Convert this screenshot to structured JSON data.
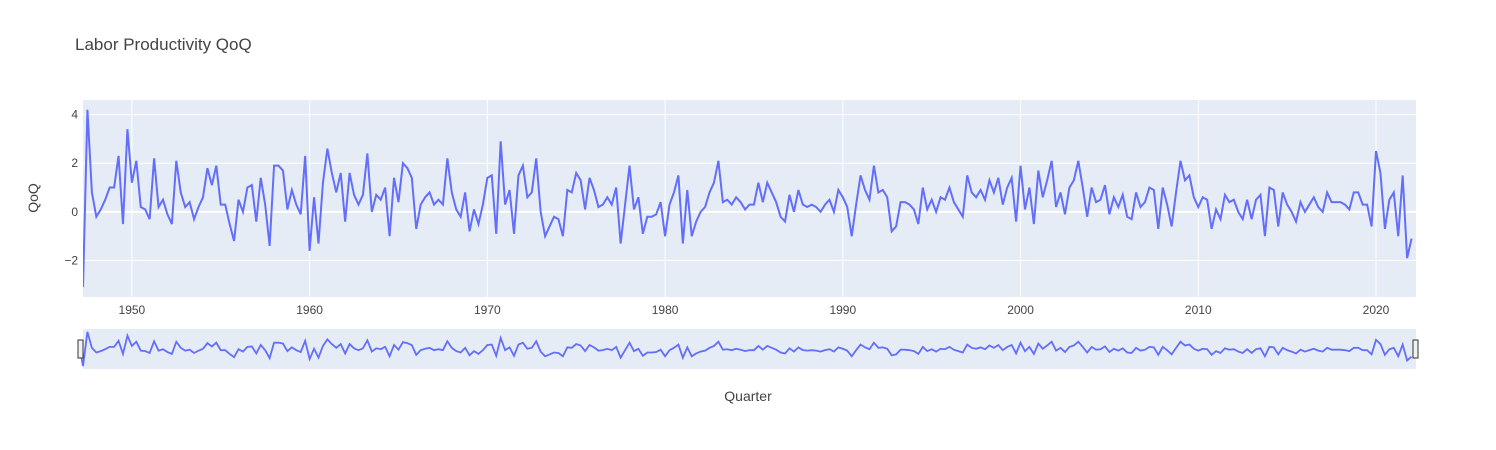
{
  "chart_data": {
    "type": "line",
    "title": "Labor Productivity QoQ",
    "xlabel": "Quarter",
    "ylabel": "QoQ",
    "x_start": "1947-Q1",
    "x_range": [
      1947.25,
      2022.25
    ],
    "ylim": [
      -3.5,
      4.6
    ],
    "xticks": [
      "1950",
      "1960",
      "1970",
      "1980",
      "1990",
      "2000",
      "2010",
      "2020"
    ],
    "yticks": [
      "−2",
      "0",
      "2",
      "4"
    ],
    "grid": true,
    "rangeslider": true,
    "colors": {
      "line": "#636efa",
      "plot_bg": "#e5ecf6",
      "grid": "#ffffff",
      "text": "#444444"
    },
    "series": [
      {
        "values": [
          2.3,
          -3.1,
          4.2,
          0.8,
          -0.2,
          0.1,
          0.5,
          1.0,
          1.0,
          2.3,
          -0.5,
          3.4,
          1.2,
          2.1,
          0.2,
          0.1,
          -0.3,
          2.2,
          0.2,
          0.5,
          -0.1,
          -0.5,
          2.1,
          0.8,
          0.2,
          0.4,
          -0.3,
          0.2,
          0.6,
          1.8,
          1.1,
          1.9,
          0.3,
          0.3,
          -0.5,
          -1.2,
          0.5,
          0.0,
          1.0,
          1.1,
          -0.4,
          1.4,
          0.3,
          -1.4,
          1.9,
          1.9,
          1.7,
          0.1,
          0.9,
          0.3,
          -0.1,
          2.3,
          -1.6,
          0.6,
          -1.3,
          1.2,
          2.6,
          1.6,
          0.8,
          1.6,
          -0.4,
          1.6,
          0.7,
          0.3,
          0.7,
          2.4,
          0.0,
          0.7,
          0.5,
          1.0,
          -1.0,
          1.4,
          0.4,
          2.0,
          1.8,
          1.4,
          -0.7,
          0.3,
          0.6,
          0.8,
          0.3,
          0.5,
          0.3,
          2.2,
          0.8,
          0.1,
          -0.2,
          0.8,
          -0.8,
          0.1,
          -0.5,
          0.3,
          1.4,
          1.5,
          -0.9,
          2.9,
          0.3,
          0.9,
          -0.9,
          1.5,
          1.9,
          0.6,
          0.8,
          2.2,
          0.0,
          -1.0,
          -0.6,
          -0.2,
          -0.3,
          -1.0,
          0.9,
          0.8,
          1.6,
          1.3,
          0.1,
          1.4,
          0.9,
          0.2,
          0.3,
          0.6,
          0.3,
          1.0,
          -1.3,
          0.3,
          1.9,
          0.1,
          0.6,
          -0.9,
          -0.2,
          -0.2,
          -0.1,
          0.4,
          -1.0,
          0.3,
          0.8,
          1.5,
          -1.3,
          0.9,
          -1.0,
          -0.4,
          0.0,
          0.2,
          0.8,
          1.2,
          2.1,
          0.4,
          0.5,
          0.3,
          0.6,
          0.4,
          0.1,
          0.3,
          0.3,
          1.2,
          0.4,
          1.2,
          0.8,
          0.4,
          -0.2,
          -0.4,
          0.7,
          0.0,
          0.9,
          0.3,
          0.2,
          0.3,
          0.2,
          0.0,
          0.3,
          0.5,
          0.0,
          0.9,
          0.6,
          0.2,
          -1.0,
          0.3,
          1.5,
          0.9,
          0.5,
          1.9,
          0.8,
          0.9,
          0.6,
          -0.8,
          -0.6,
          0.4,
          0.4,
          0.3,
          0.1,
          -0.5,
          1.0,
          0.1,
          0.5,
          0.0,
          0.6,
          0.5,
          1.0,
          0.4,
          0.1,
          -0.2,
          1.5,
          0.8,
          0.6,
          0.9,
          0.5,
          1.3,
          0.8,
          1.4,
          0.3,
          1.0,
          1.4,
          -0.4,
          1.9,
          0.1,
          1.0,
          -0.5,
          1.7,
          0.6,
          1.3,
          2.1,
          0.2,
          0.8,
          -0.1,
          1.0,
          1.3,
          2.1,
          1.0,
          -0.2,
          1.0,
          0.4,
          0.5,
          1.1,
          -0.1,
          0.6,
          0.2,
          0.7,
          -0.2,
          -0.3,
          0.8,
          0.2,
          0.4,
          1.0,
          0.9,
          -0.7,
          1.0,
          0.3,
          -0.6,
          0.8,
          2.1,
          1.3,
          1.5,
          0.6,
          0.2,
          0.6,
          0.5,
          -0.7,
          0.1,
          -0.3,
          0.7,
          0.4,
          0.5,
          0.0,
          -0.3,
          0.5,
          -0.3,
          0.5,
          0.7,
          -1.0,
          1.0,
          0.9,
          -0.6,
          0.8,
          0.3,
          0.0,
          -0.4,
          0.4,
          0.0,
          0.3,
          0.6,
          0.2,
          0.0,
          0.8,
          0.4,
          0.4,
          0.4,
          0.3,
          0.1,
          0.8,
          0.8,
          0.3,
          0.3,
          -0.6,
          2.5,
          1.6,
          -0.7,
          0.5,
          0.8,
          -1.0,
          1.5,
          -1.9,
          -1.1
        ]
      }
    ]
  }
}
